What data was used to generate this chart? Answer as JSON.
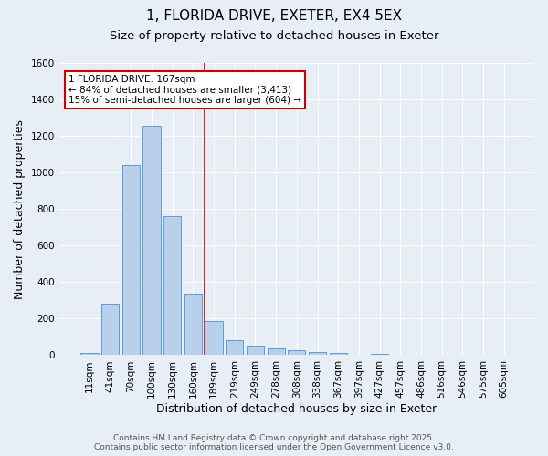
{
  "title1": "1, FLORIDA DRIVE, EXETER, EX4 5EX",
  "title2": "Size of property relative to detached houses in Exeter",
  "xlabel": "Distribution of detached houses by size in Exeter",
  "ylabel": "Number of detached properties",
  "bin_labels": [
    "11sqm",
    "41sqm",
    "70sqm",
    "100sqm",
    "130sqm",
    "160sqm",
    "189sqm",
    "219sqm",
    "249sqm",
    "278sqm",
    "308sqm",
    "338sqm",
    "367sqm",
    "397sqm",
    "427sqm",
    "457sqm",
    "486sqm",
    "516sqm",
    "546sqm",
    "575sqm",
    "605sqm"
  ],
  "bar_values": [
    10,
    280,
    1040,
    1255,
    760,
    335,
    185,
    80,
    50,
    38,
    25,
    15,
    10,
    0,
    5,
    2,
    2,
    0,
    0,
    2,
    0
  ],
  "bar_color": "#b8d0ea",
  "bar_edge_color": "#5b9bd5",
  "background_color": "#e8eef5",
  "grid_color": "#ffffff",
  "vline_x_index": 5.55,
  "vline_color": "#cc0000",
  "annotation_title": "1 FLORIDA DRIVE: 167sqm",
  "annotation_line1": "← 84% of detached houses are smaller (3,413)",
  "annotation_line2": "15% of semi-detached houses are larger (604) →",
  "annotation_box_color": "#cc0000",
  "ylim": [
    0,
    1600
  ],
  "yticks": [
    0,
    200,
    400,
    600,
    800,
    1000,
    1200,
    1400,
    1600
  ],
  "footer1": "Contains HM Land Registry data © Crown copyright and database right 2025.",
  "footer2": "Contains public sector information licensed under the Open Government Licence v3.0.",
  "title_fontsize": 11,
  "subtitle_fontsize": 9.5,
  "axis_label_fontsize": 9,
  "tick_fontsize": 7.5,
  "annotation_fontsize": 7.5,
  "footer_fontsize": 6.5
}
